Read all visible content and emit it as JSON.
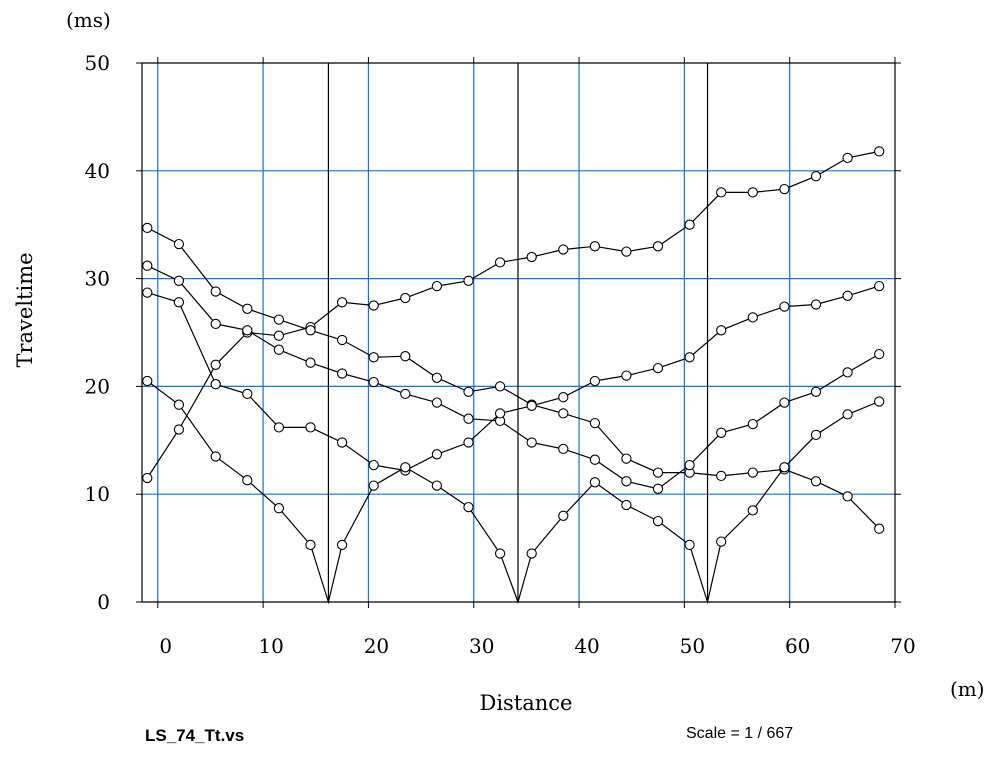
{
  "filename": "LS_74_Tt.vs",
  "scale_label": "Scale = 1 / 667",
  "colors": {
    "grid": "#1f6fc8",
    "axis": "#000000",
    "series": "#000000",
    "shot_line": "#000000"
  },
  "chart_data": {
    "type": "line",
    "title": "",
    "xlabel": "Distance",
    "ylabel": "Traveltime",
    "x_unit": "(m)",
    "y_unit": "(ms)",
    "xlim": [
      -1.5,
      70
    ],
    "ylim": [
      0,
      50
    ],
    "x_ticks": [
      0,
      10,
      20,
      30,
      40,
      50,
      60,
      70
    ],
    "y_ticks": [
      0,
      10,
      20,
      30,
      40,
      50
    ],
    "grid": true,
    "marker": "open-circle",
    "shot_positions": [
      16.2,
      34.2,
      52.2
    ],
    "series": [
      {
        "values": [
          [
            -1,
            11.5
          ],
          [
            2,
            16
          ],
          [
            5.5,
            22
          ],
          [
            8.5,
            25
          ],
          [
            11.5,
            24.7
          ],
          [
            14.5,
            25.5
          ],
          [
            17.5,
            27.8
          ],
          [
            20.5,
            27.5
          ],
          [
            23.5,
            28.2
          ],
          [
            26.5,
            29.3
          ],
          [
            29.5,
            29.8
          ],
          [
            32.5,
            31.5
          ],
          [
            35.5,
            32
          ],
          [
            38.5,
            32.7
          ],
          [
            41.5,
            33
          ],
          [
            44.5,
            32.5
          ],
          [
            47.5,
            33
          ],
          [
            50.5,
            35
          ],
          [
            53.5,
            38
          ],
          [
            56.5,
            38
          ],
          [
            59.5,
            38.3
          ],
          [
            62.5,
            39.5
          ],
          [
            65.5,
            41.2
          ],
          [
            68.5,
            41.8
          ]
        ]
      },
      {
        "values": [
          [
            -1,
            34.7
          ],
          [
            2,
            33.2
          ],
          [
            5.5,
            28.8
          ],
          [
            8.5,
            27.2
          ],
          [
            11.5,
            26.2
          ],
          [
            14.5,
            25.2
          ],
          [
            17.5,
            24.3
          ],
          [
            20.5,
            22.7
          ],
          [
            23.5,
            22.8
          ],
          [
            26.5,
            20.8
          ],
          [
            29.5,
            19.5
          ],
          [
            32.5,
            20
          ],
          [
            35.5,
            18.3
          ],
          [
            38.5,
            17.5
          ],
          [
            41.5,
            16.6
          ],
          [
            44.5,
            13.3
          ],
          [
            47.5,
            12
          ],
          [
            50.5,
            12
          ],
          [
            53.5,
            11.7
          ],
          [
            56.5,
            12
          ],
          [
            59.5,
            12.3
          ],
          [
            62.5,
            11.2
          ],
          [
            65.5,
            9.8
          ],
          [
            68.5,
            6.8
          ]
        ]
      },
      {
        "values": [
          [
            -1,
            31.2
          ],
          [
            2,
            29.8
          ],
          [
            5.5,
            25.8
          ],
          [
            8.5,
            25.2
          ],
          [
            11.5,
            23.4
          ],
          [
            14.5,
            22.2
          ],
          [
            17.5,
            21.2
          ],
          [
            20.5,
            20.4
          ],
          [
            23.5,
            19.3
          ],
          [
            26.5,
            18.5
          ],
          [
            29.5,
            17
          ],
          [
            32.5,
            16.8
          ],
          [
            35.5,
            14.8
          ],
          [
            38.5,
            14.2
          ],
          [
            41.5,
            13.2
          ],
          [
            44.5,
            11.2
          ],
          [
            47.5,
            10.5
          ],
          [
            50.5,
            12.7
          ],
          [
            53.5,
            15.7
          ],
          [
            56.5,
            16.5
          ],
          [
            59.5,
            18.5
          ],
          [
            62.5,
            19.5
          ],
          [
            65.5,
            21.3
          ],
          [
            68.5,
            23
          ]
        ]
      },
      {
        "values": [
          [
            -1,
            28.7
          ],
          [
            2,
            27.8
          ],
          [
            5.5,
            20.2
          ],
          [
            8.5,
            19.3
          ],
          [
            11.5,
            16.2
          ],
          [
            14.5,
            16.2
          ],
          [
            17.5,
            14.8
          ],
          [
            20.5,
            12.7
          ],
          [
            23.5,
            12.2
          ],
          [
            26.5,
            13.7
          ],
          [
            29.5,
            14.8
          ],
          [
            32.5,
            17.5
          ],
          [
            35.5,
            18.2
          ],
          [
            38.5,
            19
          ],
          [
            41.5,
            20.5
          ],
          [
            44.5,
            21
          ],
          [
            47.5,
            21.7
          ],
          [
            50.5,
            22.7
          ],
          [
            53.5,
            25.2
          ],
          [
            56.5,
            26.4
          ],
          [
            59.5,
            27.4
          ],
          [
            62.5,
            27.6
          ],
          [
            65.5,
            28.4
          ],
          [
            68.5,
            29.3
          ]
        ]
      },
      {
        "values": [
          [
            -1,
            20.5
          ],
          [
            2,
            18.3
          ],
          [
            5.5,
            13.5
          ],
          [
            8.5,
            11.3
          ],
          [
            11.5,
            8.7
          ],
          [
            14.5,
            5.3
          ],
          [
            16.2,
            0
          ],
          [
            17.5,
            5.3
          ],
          [
            20.5,
            10.8
          ],
          [
            23.5,
            12.5
          ],
          [
            26.5,
            10.8
          ],
          [
            29.5,
            8.8
          ],
          [
            32.5,
            4.5
          ],
          [
            34.2,
            0
          ],
          [
            35.5,
            4.5
          ],
          [
            38.5,
            8
          ],
          [
            41.5,
            11.1
          ],
          [
            44.5,
            9
          ],
          [
            47.5,
            7.5
          ],
          [
            50.5,
            5.3
          ],
          [
            52.2,
            0
          ],
          [
            53.5,
            5.6
          ],
          [
            56.5,
            8.5
          ],
          [
            59.5,
            12.5
          ],
          [
            62.5,
            15.5
          ],
          [
            65.5,
            17.4
          ],
          [
            68.5,
            18.6
          ]
        ]
      }
    ]
  }
}
